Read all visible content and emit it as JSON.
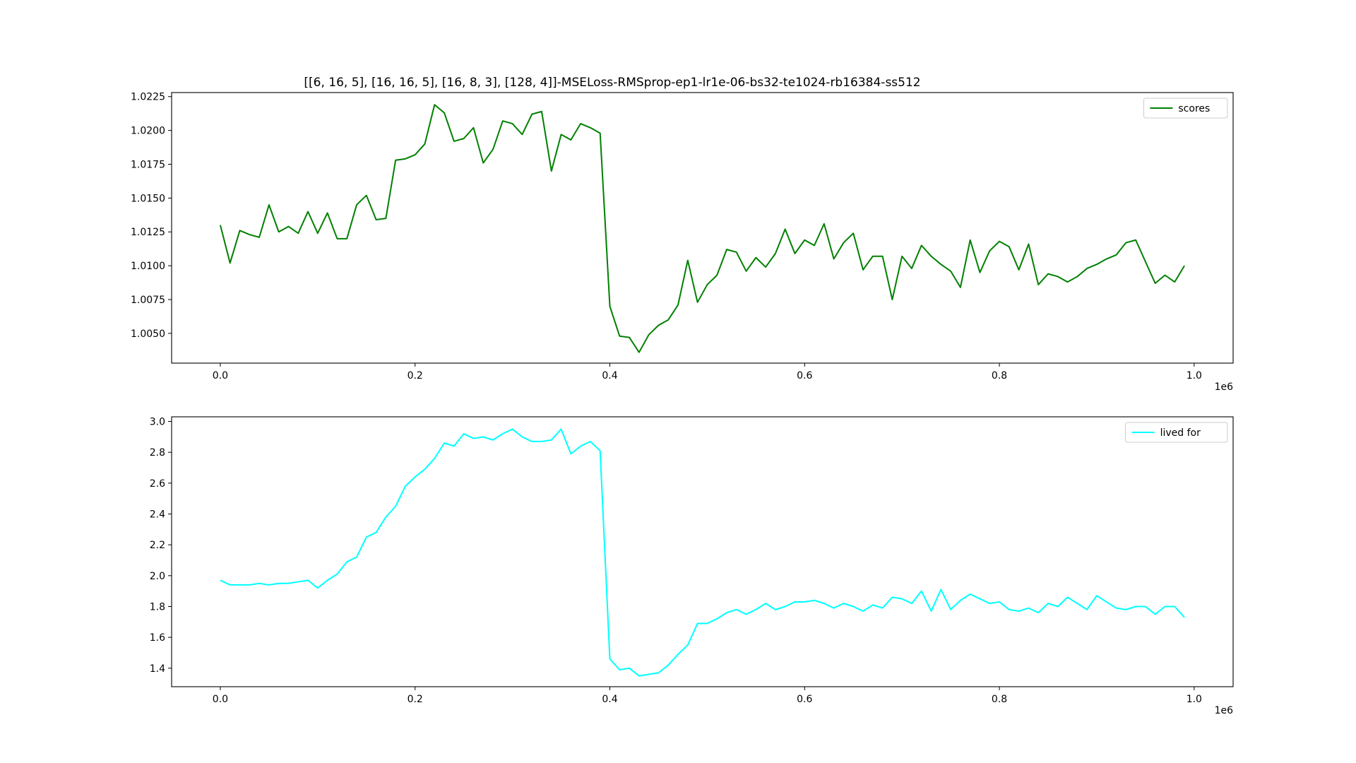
{
  "chart_data": [
    {
      "type": "line",
      "title": "[[6, 16, 5], [16, 16, 5], [16, 8, 3], [128, 4]]-MSELoss-RMSprop-ep1-lr1e-06-bs32-te1024-rb16384-ss512",
      "xlabel": "",
      "ylabel": "",
      "x_offset_label": "1e6",
      "xlim": [
        -0.05,
        1.04
      ],
      "ylim": [
        1.0028,
        1.0228
      ],
      "xticks": [
        0.0,
        0.2,
        0.4,
        0.6,
        0.8,
        1.0
      ],
      "xtick_labels": [
        "0.0",
        "0.2",
        "0.4",
        "0.6",
        "0.8",
        "1.0"
      ],
      "yticks": [
        1.005,
        1.0075,
        1.01,
        1.0125,
        1.015,
        1.0175,
        1.02,
        1.0225
      ],
      "ytick_labels": [
        "1.0050",
        "1.0075",
        "1.0100",
        "1.0125",
        "1.0150",
        "1.0175",
        "1.0200",
        "1.0225"
      ],
      "grid": false,
      "legend_position": "top-right",
      "x_step": 0.01,
      "series": [
        {
          "name": "scores",
          "color": "#008000",
          "values": [
            1.013,
            1.0102,
            1.0126,
            1.0123,
            1.0121,
            1.0145,
            1.0125,
            1.0129,
            1.0124,
            1.014,
            1.0124,
            1.0139,
            1.012,
            1.012,
            1.0145,
            1.0152,
            1.0134,
            1.0135,
            1.0178,
            1.0179,
            1.0182,
            1.019,
            1.0219,
            1.0213,
            1.0192,
            1.0194,
            1.0202,
            1.0176,
            1.0186,
            1.0207,
            1.0205,
            1.0197,
            1.0212,
            1.0214,
            1.017,
            1.0197,
            1.0193,
            1.0205,
            1.0202,
            1.0198,
            1.007,
            1.0048,
            1.0047,
            1.0036,
            1.0049,
            1.0056,
            1.006,
            1.0071,
            1.0104,
            1.0073,
            1.0086,
            1.0093,
            1.0112,
            1.011,
            1.0096,
            1.0106,
            1.0099,
            1.0109,
            1.0127,
            1.0109,
            1.0119,
            1.0115,
            1.0131,
            1.0105,
            1.0117,
            1.0124,
            1.0097,
            1.0107,
            1.0107,
            1.0075,
            1.0107,
            1.0098,
            1.0115,
            1.0107,
            1.0101,
            1.0096,
            1.0084,
            1.0119,
            1.0095,
            1.0111,
            1.0118,
            1.0114,
            1.0097,
            1.0116,
            1.0086,
            1.0094,
            1.0092,
            1.0088,
            1.0092,
            1.0098,
            1.0101,
            1.0105,
            1.0108,
            1.0117,
            1.0119,
            1.0103,
            1.0087,
            1.0093,
            1.0088,
            1.01
          ]
        }
      ]
    },
    {
      "type": "line",
      "title": "",
      "xlabel": "",
      "ylabel": "",
      "x_offset_label": "1e6",
      "xlim": [
        -0.05,
        1.04
      ],
      "ylim": [
        1.28,
        3.03
      ],
      "xticks": [
        0.0,
        0.2,
        0.4,
        0.6,
        0.8,
        1.0
      ],
      "xtick_labels": [
        "0.0",
        "0.2",
        "0.4",
        "0.6",
        "0.8",
        "1.0"
      ],
      "yticks": [
        1.4,
        1.6,
        1.8,
        2.0,
        2.2,
        2.4,
        2.6,
        2.8,
        3.0
      ],
      "ytick_labels": [
        "1.4",
        "1.6",
        "1.8",
        "2.0",
        "2.2",
        "2.4",
        "2.6",
        "2.8",
        "3.0"
      ],
      "grid": false,
      "legend_position": "top-right",
      "x_step": 0.01,
      "series": [
        {
          "name": "lived for",
          "color": "#00ffff",
          "values": [
            1.97,
            1.94,
            1.94,
            1.94,
            1.95,
            1.94,
            1.95,
            1.95,
            1.96,
            1.97,
            1.92,
            1.97,
            2.01,
            2.09,
            2.12,
            2.25,
            2.28,
            2.38,
            2.45,
            2.58,
            2.64,
            2.69,
            2.76,
            2.86,
            2.84,
            2.92,
            2.89,
            2.9,
            2.88,
            2.92,
            2.95,
            2.9,
            2.87,
            2.87,
            2.88,
            2.95,
            2.79,
            2.84,
            2.87,
            2.81,
            1.46,
            1.39,
            1.4,
            1.35,
            1.36,
            1.37,
            1.42,
            1.49,
            1.55,
            1.69,
            1.69,
            1.72,
            1.76,
            1.78,
            1.75,
            1.78,
            1.82,
            1.78,
            1.8,
            1.83,
            1.83,
            1.84,
            1.82,
            1.79,
            1.82,
            1.8,
            1.77,
            1.81,
            1.79,
            1.86,
            1.85,
            1.82,
            1.9,
            1.77,
            1.91,
            1.78,
            1.84,
            1.88,
            1.85,
            1.82,
            1.83,
            1.78,
            1.77,
            1.79,
            1.76,
            1.82,
            1.8,
            1.86,
            1.82,
            1.78,
            1.87,
            1.83,
            1.79,
            1.78,
            1.8,
            1.8,
            1.75,
            1.8,
            1.8,
            1.73
          ]
        }
      ]
    }
  ]
}
